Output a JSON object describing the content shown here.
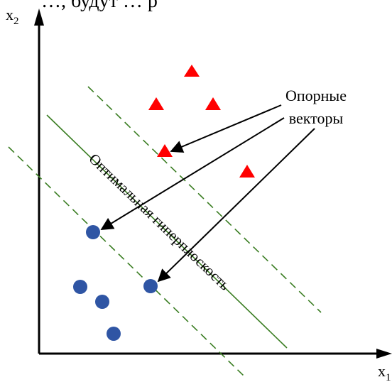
{
  "top_text": "…, будут        …             р",
  "axes": {
    "x_label": "x",
    "x_sub": "1",
    "y_label": "x",
    "y_sub": "2"
  },
  "annotations": {
    "support_vectors_line1": "Опорные",
    "support_vectors_line2": "векторы",
    "hyperplane": "Оптимальная гиперплоскость"
  },
  "colors": {
    "class_a": "#ff0000",
    "class_b": "#2f55a4",
    "margin_line": "#3a7d22",
    "hyperplane_line": "#3a7d22",
    "axis": "#000000"
  },
  "marker_icons": {
    "class_a": "triangle-icon",
    "class_b": "circle-icon"
  }
}
